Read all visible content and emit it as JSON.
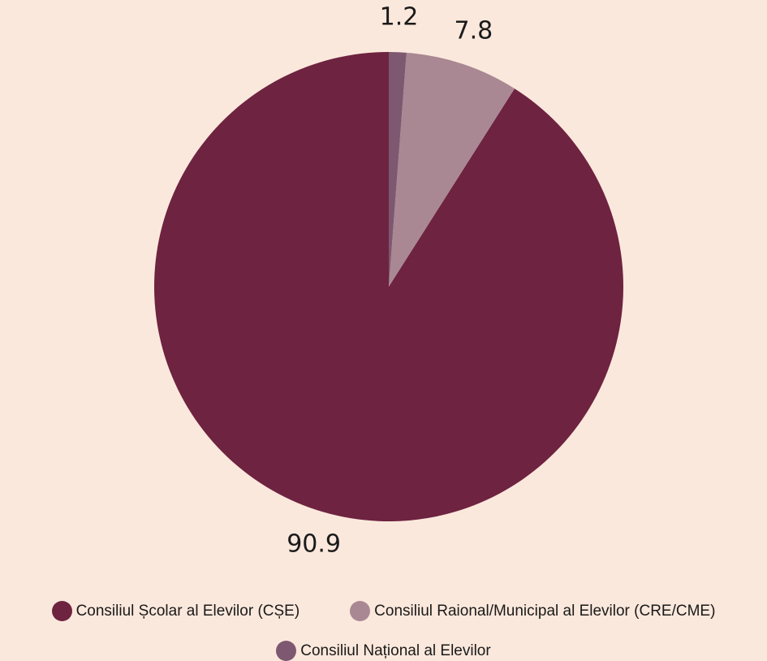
{
  "chart_data": {
    "type": "pie",
    "categories": [
      "Consiliul Școlar al Elevilor (CȘE)",
      "Consiliul Raional/Municipal al Elevilor (CRE/CME)",
      "Consiliul Național al Elevilor"
    ],
    "values": [
      90.9,
      7.8,
      1.2
    ],
    "value_labels": [
      "90.9",
      "7.8",
      "1.2"
    ],
    "colors": [
      "#6e2340",
      "#a98893",
      "#7d5870"
    ],
    "start_angle": "top",
    "direction": "clockwise",
    "legend_position": "bottom"
  }
}
